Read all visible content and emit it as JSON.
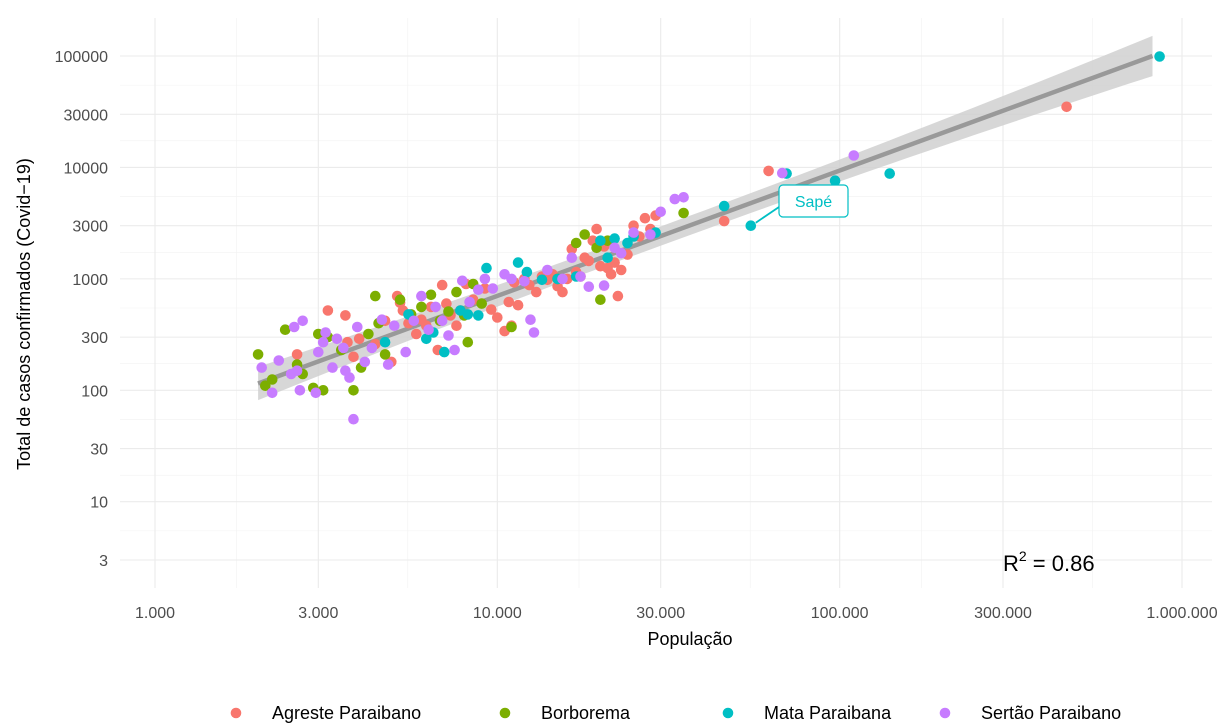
{
  "chart_data": {
    "type": "scatter",
    "title": "",
    "xlabel": "População",
    "ylabel": "Total de casos confirmados (Covid−19)",
    "x_scale": "log10",
    "y_scale": "log10",
    "xlim": [
      1000,
      1000000
    ],
    "ylim": [
      2,
      200000
    ],
    "x_ticks": [
      1000,
      3000,
      10000,
      30000,
      100000,
      300000,
      1000000
    ],
    "x_tick_labels": [
      "1.000",
      "3.000",
      "10.000",
      "30.000",
      "100.000",
      "300.000",
      "1.000.000"
    ],
    "y_ticks": [
      3,
      10,
      30,
      100,
      300,
      1000,
      3000,
      10000,
      30000,
      100000
    ],
    "y_tick_labels": [
      "3",
      "10",
      "30",
      "100",
      "300",
      "1000",
      "3000",
      "10000",
      "30000",
      "100000"
    ],
    "grid": true,
    "legend_position": "bottom",
    "trend": {
      "type": "linear fit (log-log)",
      "from": [
        2000,
        115
      ],
      "to": [
        820000,
        100000
      ],
      "band_ratio_low": 0.82,
      "band_ratio_high": 1.22,
      "color": "#999999",
      "band_color": "#d0d0d0"
    },
    "r_squared": {
      "prefix": "R",
      "superscript": "2",
      "rest": " = 0.86"
    },
    "annotation": {
      "label": "Sapé",
      "x": 55000,
      "y": 3000,
      "series": "Mata Paraibana"
    },
    "series": [
      {
        "name": "Agreste Paraibano",
        "color": "#F8766D",
        "points": [
          [
            2600,
            210
          ],
          [
            3200,
            520
          ],
          [
            3600,
            470
          ],
          [
            3650,
            270
          ],
          [
            3800,
            200
          ],
          [
            3950,
            290
          ],
          [
            4400,
            260
          ],
          [
            4700,
            420
          ],
          [
            4900,
            180
          ],
          [
            5100,
            700
          ],
          [
            5200,
            610
          ],
          [
            5300,
            520
          ],
          [
            5500,
            400
          ],
          [
            5800,
            320
          ],
          [
            6000,
            430
          ],
          [
            6200,
            380
          ],
          [
            6400,
            560
          ],
          [
            6700,
            230
          ],
          [
            6900,
            880
          ],
          [
            7100,
            600
          ],
          [
            7300,
            470
          ],
          [
            7600,
            380
          ],
          [
            7800,
            520
          ],
          [
            8100,
            900
          ],
          [
            8500,
            650
          ],
          [
            9200,
            820
          ],
          [
            9600,
            530
          ],
          [
            10000,
            450
          ],
          [
            10500,
            340
          ],
          [
            10800,
            620
          ],
          [
            11000,
            380
          ],
          [
            11200,
            930
          ],
          [
            11500,
            580
          ],
          [
            12000,
            1000
          ],
          [
            12400,
            880
          ],
          [
            13000,
            760
          ],
          [
            13500,
            1050
          ],
          [
            14000,
            980
          ],
          [
            14500,
            1100
          ],
          [
            15000,
            860
          ],
          [
            15500,
            760
          ],
          [
            16000,
            1000
          ],
          [
            16500,
            1850
          ],
          [
            17000,
            1150
          ],
          [
            17500,
            1050
          ],
          [
            18000,
            1550
          ],
          [
            18500,
            1450
          ],
          [
            19000,
            2200
          ],
          [
            19500,
            2800
          ],
          [
            20000,
            1300
          ],
          [
            20500,
            1950
          ],
          [
            21000,
            1250
          ],
          [
            21500,
            1100
          ],
          [
            22000,
            1400
          ],
          [
            22500,
            700
          ],
          [
            23000,
            1200
          ],
          [
            24000,
            1650
          ],
          [
            25000,
            3000
          ],
          [
            26000,
            2400
          ],
          [
            27000,
            3500
          ],
          [
            28000,
            2800
          ],
          [
            29000,
            3700
          ],
          [
            46000,
            3300
          ],
          [
            62000,
            9300
          ],
          [
            460000,
            35000
          ]
        ]
      },
      {
        "name": "Borborema",
        "color": "#7CAE00",
        "points": [
          [
            2000,
            210
          ],
          [
            2100,
            110
          ],
          [
            2200,
            125
          ],
          [
            2400,
            350
          ],
          [
            2600,
            170
          ],
          [
            2700,
            140
          ],
          [
            2900,
            105
          ],
          [
            3000,
            320
          ],
          [
            3100,
            100
          ],
          [
            3200,
            300
          ],
          [
            3500,
            230
          ],
          [
            3800,
            100
          ],
          [
            4000,
            160
          ],
          [
            4200,
            320
          ],
          [
            4400,
            700
          ],
          [
            4500,
            400
          ],
          [
            4700,
            210
          ],
          [
            5200,
            650
          ],
          [
            5600,
            480
          ],
          [
            6000,
            560
          ],
          [
            6400,
            720
          ],
          [
            6800,
            420
          ],
          [
            7200,
            510
          ],
          [
            7600,
            760
          ],
          [
            8000,
            470
          ],
          [
            8200,
            270
          ],
          [
            8500,
            900
          ],
          [
            9000,
            600
          ],
          [
            11000,
            370
          ],
          [
            15000,
            1000
          ],
          [
            17000,
            2100
          ],
          [
            18000,
            2500
          ],
          [
            19500,
            1900
          ],
          [
            20000,
            650
          ],
          [
            21000,
            2200
          ],
          [
            35000,
            3900
          ]
        ]
      },
      {
        "name": "Mata Paraibana",
        "color": "#00BFC4",
        "points": [
          [
            4700,
            270
          ],
          [
            5500,
            480
          ],
          [
            6200,
            290
          ],
          [
            6500,
            330
          ],
          [
            7000,
            220
          ],
          [
            7800,
            520
          ],
          [
            8200,
            480
          ],
          [
            8800,
            470
          ],
          [
            9300,
            1250
          ],
          [
            11500,
            1400
          ],
          [
            12200,
            1150
          ],
          [
            13500,
            980
          ],
          [
            15000,
            1000
          ],
          [
            17000,
            1050
          ],
          [
            20000,
            2200
          ],
          [
            21000,
            1550
          ],
          [
            22000,
            2300
          ],
          [
            24000,
            2100
          ],
          [
            25000,
            2400
          ],
          [
            29000,
            2600
          ],
          [
            46000,
            4500
          ],
          [
            55000,
            3000
          ],
          [
            70000,
            8800
          ],
          [
            97000,
            7600
          ],
          [
            140000,
            8800
          ],
          [
            860000,
            99000
          ]
        ]
      },
      {
        "name": "Sertão Paraibano",
        "color": "#C77CFF",
        "points": [
          [
            2050,
            160
          ],
          [
            2200,
            95
          ],
          [
            2300,
            185
          ],
          [
            2500,
            140
          ],
          [
            2550,
            370
          ],
          [
            2600,
            150
          ],
          [
            2650,
            100
          ],
          [
            2700,
            420
          ],
          [
            2950,
            95
          ],
          [
            3000,
            220
          ],
          [
            3100,
            270
          ],
          [
            3150,
            330
          ],
          [
            3300,
            160
          ],
          [
            3400,
            290
          ],
          [
            3550,
            240
          ],
          [
            3600,
            150
          ],
          [
            3700,
            130
          ],
          [
            3800,
            55
          ],
          [
            3900,
            370
          ],
          [
            4100,
            180
          ],
          [
            4300,
            240
          ],
          [
            4600,
            430
          ],
          [
            4800,
            170
          ],
          [
            5000,
            380
          ],
          [
            5400,
            220
          ],
          [
            5700,
            420
          ],
          [
            6000,
            700
          ],
          [
            6300,
            350
          ],
          [
            6600,
            560
          ],
          [
            6900,
            420
          ],
          [
            7200,
            310
          ],
          [
            7500,
            230
          ],
          [
            7900,
            960
          ],
          [
            8300,
            620
          ],
          [
            8800,
            800
          ],
          [
            9200,
            1000
          ],
          [
            9700,
            820
          ],
          [
            10500,
            1100
          ],
          [
            11000,
            1000
          ],
          [
            12000,
            950
          ],
          [
            12500,
            430
          ],
          [
            12800,
            330
          ],
          [
            14000,
            1200
          ],
          [
            15500,
            1000
          ],
          [
            16500,
            1550
          ],
          [
            17500,
            1050
          ],
          [
            18500,
            850
          ],
          [
            20500,
            870
          ],
          [
            22000,
            1900
          ],
          [
            23000,
            1700
          ],
          [
            25000,
            2600
          ],
          [
            28000,
            2500
          ],
          [
            30000,
            4000
          ],
          [
            33000,
            5200
          ],
          [
            35000,
            5400
          ],
          [
            68000,
            8900
          ],
          [
            110000,
            12800
          ]
        ]
      }
    ]
  }
}
